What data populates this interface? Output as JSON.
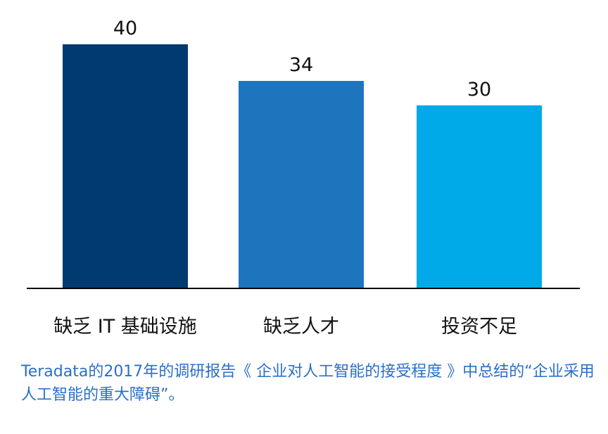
{
  "chart_data": {
    "type": "bar",
    "categories": [
      "缺乏 IT 基础设施",
      "缺乏人才",
      "投资不足"
    ],
    "values": [
      40,
      34,
      30
    ],
    "colors": [
      "#003a70",
      "#1d76bd",
      "#00a9e8"
    ],
    "ylim": [
      0,
      40
    ],
    "grid": false,
    "legend": "none",
    "data_labels": true,
    "axis_color": "#000000"
  },
  "caption": "Teradata的2017年的调研报告《 企业对人工智能的接受程度 》中总结的“企业采用人工智能的重大障碍”。"
}
